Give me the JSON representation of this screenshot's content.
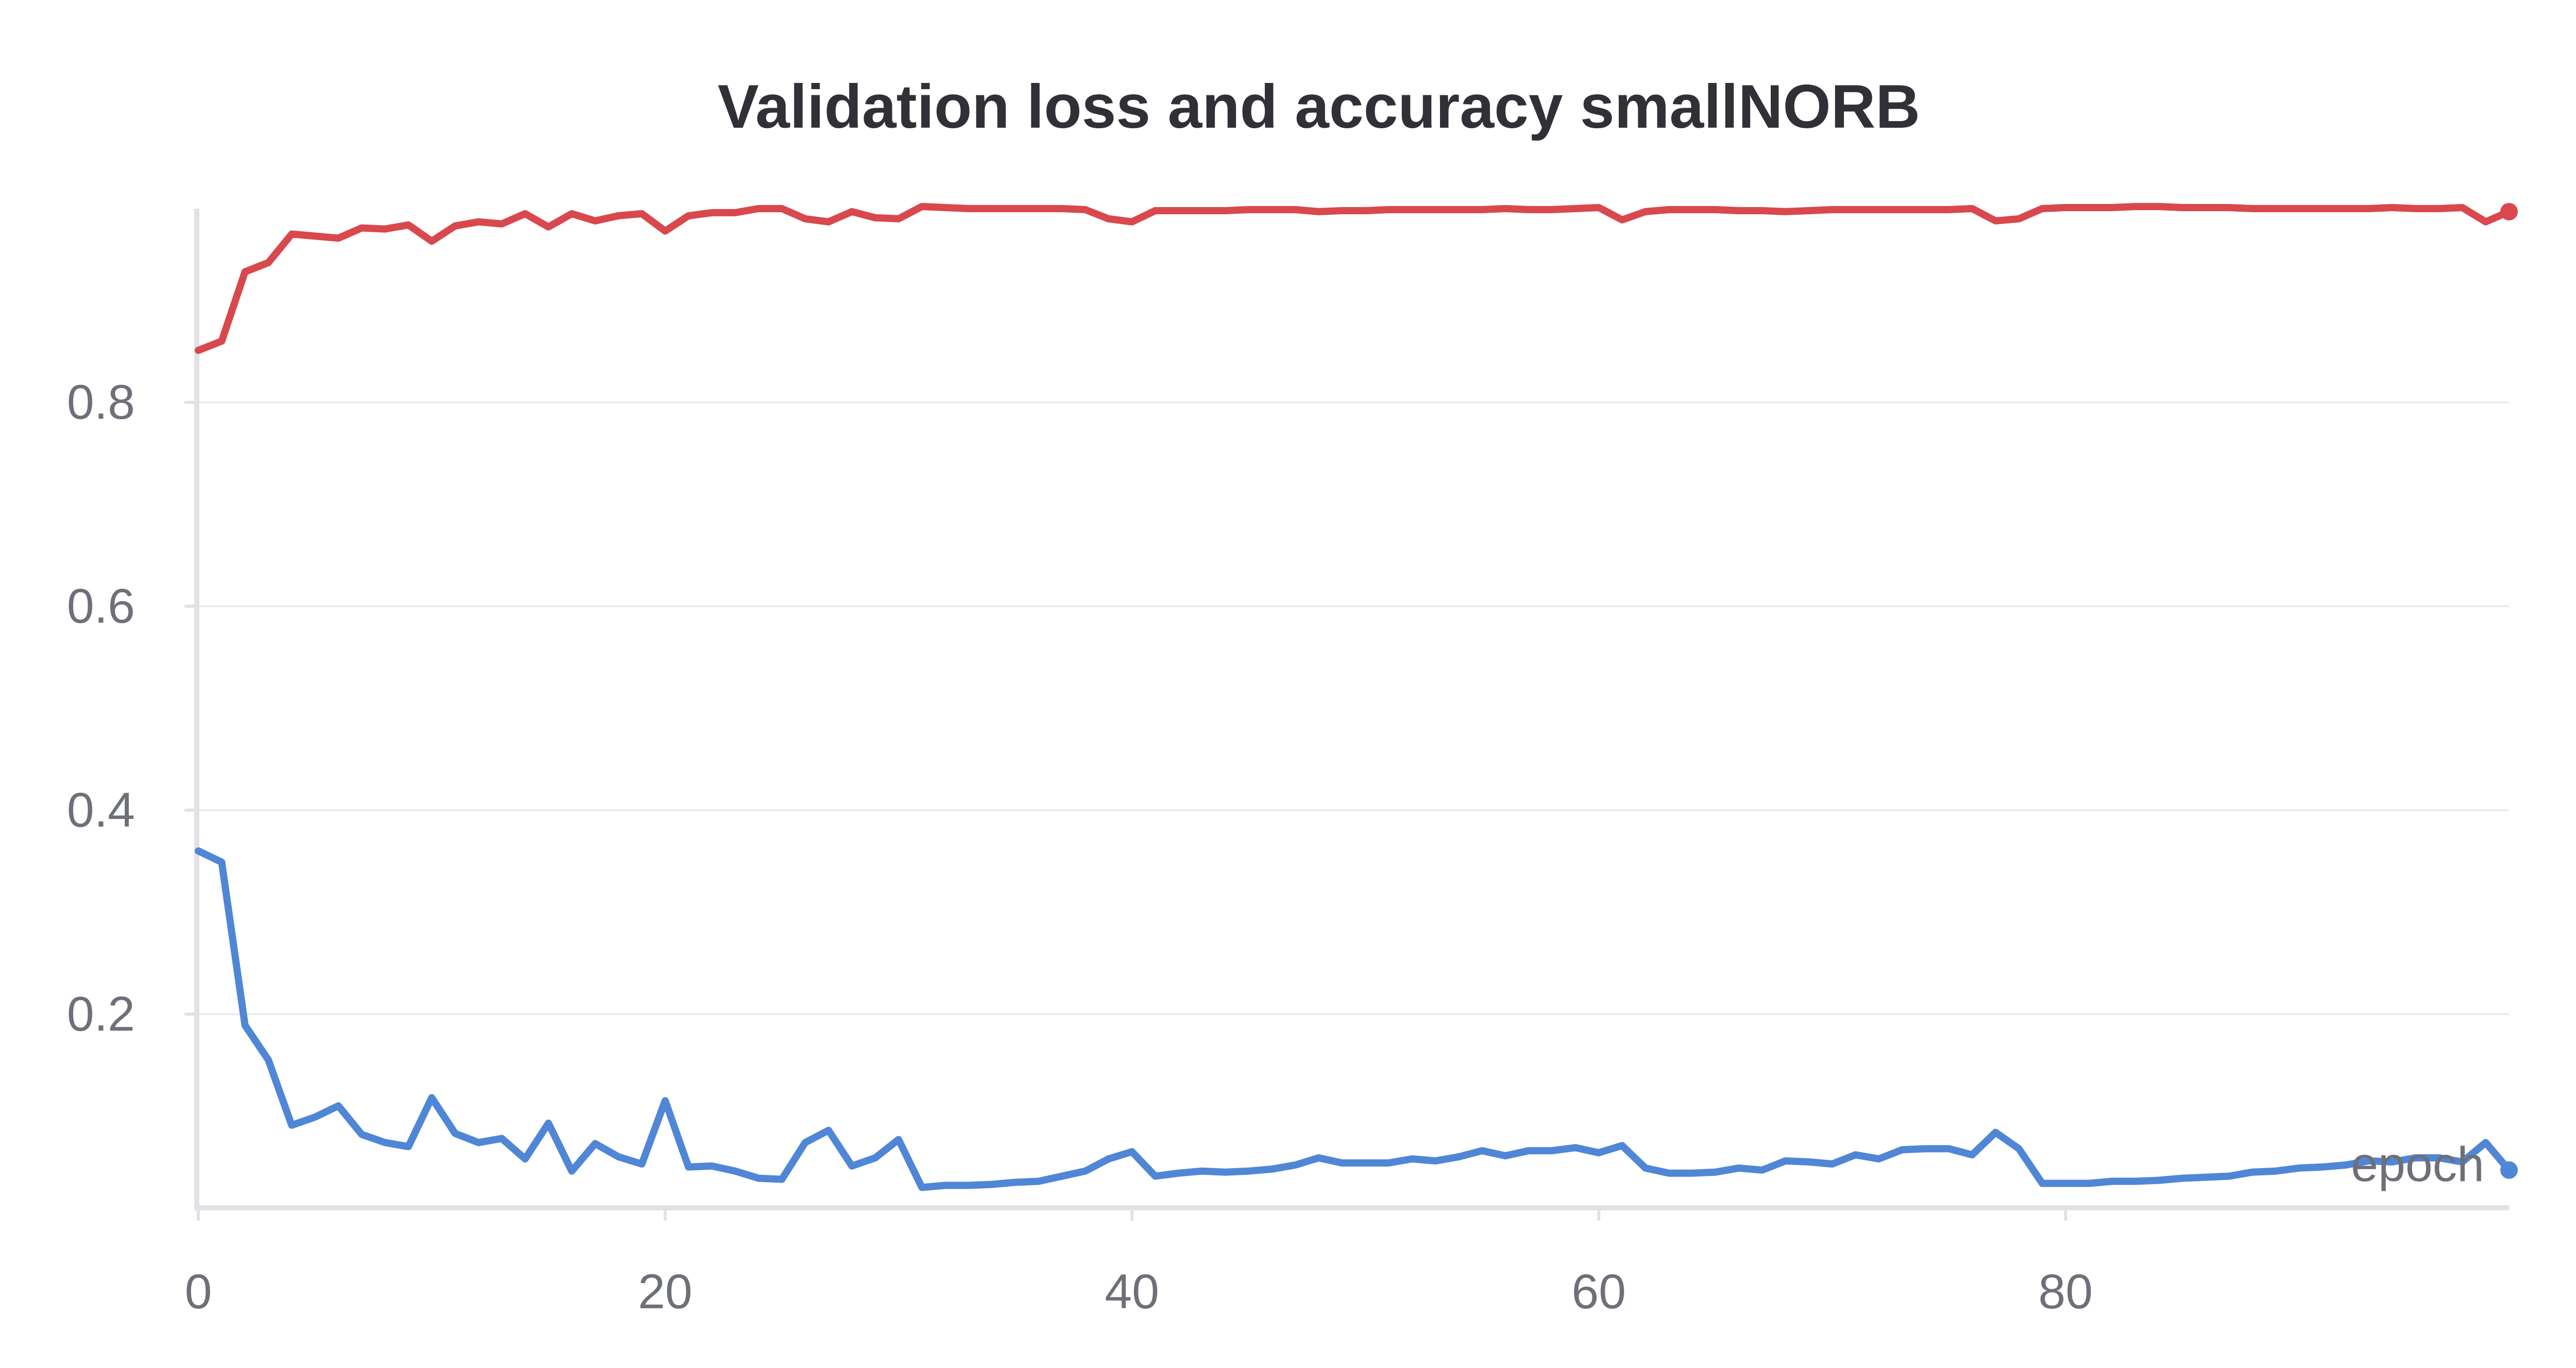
{
  "chart_data": {
    "type": "line",
    "title": "Validation loss and accuracy smallNORB",
    "xlabel": "epoch",
    "ylabel": "",
    "xlim": [
      0,
      99
    ],
    "ylim": [
      0.01,
      0.99
    ],
    "x_ticks": [
      "0",
      "20",
      "40",
      "60",
      "80"
    ],
    "y_ticks": [
      "0.2",
      "0.4",
      "0.6",
      "0.8"
    ],
    "grid": true,
    "legend": "none",
    "series": [
      {
        "color": "#d9484d",
        "values": [
          0.851,
          0.86,
          0.928,
          0.937,
          0.965,
          0.963,
          0.961,
          0.971,
          0.97,
          0.974,
          0.958,
          0.973,
          0.977,
          0.975,
          0.985,
          0.972,
          0.985,
          0.978,
          0.983,
          0.985,
          0.968,
          0.983,
          0.986,
          0.986,
          0.99,
          0.99,
          0.98,
          0.977,
          0.987,
          0.981,
          0.98,
          0.992,
          0.991,
          0.99,
          0.99,
          0.99,
          0.99,
          0.99,
          0.989,
          0.98,
          0.977,
          0.988,
          0.988,
          0.988,
          0.988,
          0.989,
          0.989,
          0.989,
          0.987,
          0.988,
          0.988,
          0.989,
          0.989,
          0.989,
          0.989,
          0.989,
          0.99,
          0.989,
          0.989,
          0.99,
          0.991,
          0.979,
          0.987,
          0.989,
          0.989,
          0.989,
          0.988,
          0.988,
          0.987,
          0.988,
          0.989,
          0.989,
          0.989,
          0.989,
          0.989,
          0.989,
          0.99,
          0.978,
          0.98,
          0.99,
          0.991,
          0.991,
          0.991,
          0.992,
          0.992,
          0.991,
          0.991,
          0.991,
          0.99,
          0.99,
          0.99,
          0.99,
          0.99,
          0.99,
          0.991,
          0.99,
          0.99,
          0.991,
          0.977,
          0.987
        ]
      },
      {
        "color": "#5086d6",
        "values": [
          0.36,
          0.349,
          0.189,
          0.155,
          0.091,
          0.099,
          0.11,
          0.082,
          0.074,
          0.07,
          0.118,
          0.083,
          0.074,
          0.078,
          0.058,
          0.093,
          0.046,
          0.073,
          0.06,
          0.053,
          0.115,
          0.05,
          0.051,
          0.046,
          0.039,
          0.038,
          0.074,
          0.086,
          0.051,
          0.059,
          0.077,
          0.03,
          0.032,
          0.032,
          0.033,
          0.035,
          0.036,
          0.041,
          0.046,
          0.058,
          0.065,
          0.041,
          0.044,
          0.046,
          0.045,
          0.046,
          0.048,
          0.052,
          0.059,
          0.054,
          0.054,
          0.054,
          0.058,
          0.056,
          0.06,
          0.066,
          0.061,
          0.066,
          0.066,
          0.069,
          0.064,
          0.071,
          0.049,
          0.044,
          0.044,
          0.045,
          0.049,
          0.047,
          0.056,
          0.055,
          0.053,
          0.062,
          0.058,
          0.067,
          0.068,
          0.068,
          0.062,
          0.084,
          0.068,
          0.034,
          0.034,
          0.034,
          0.036,
          0.036,
          0.037,
          0.039,
          0.04,
          0.041,
          0.045,
          0.046,
          0.049,
          0.05,
          0.052,
          0.056,
          0.055,
          0.059,
          0.059,
          0.055,
          0.074,
          0.047
        ]
      }
    ]
  }
}
